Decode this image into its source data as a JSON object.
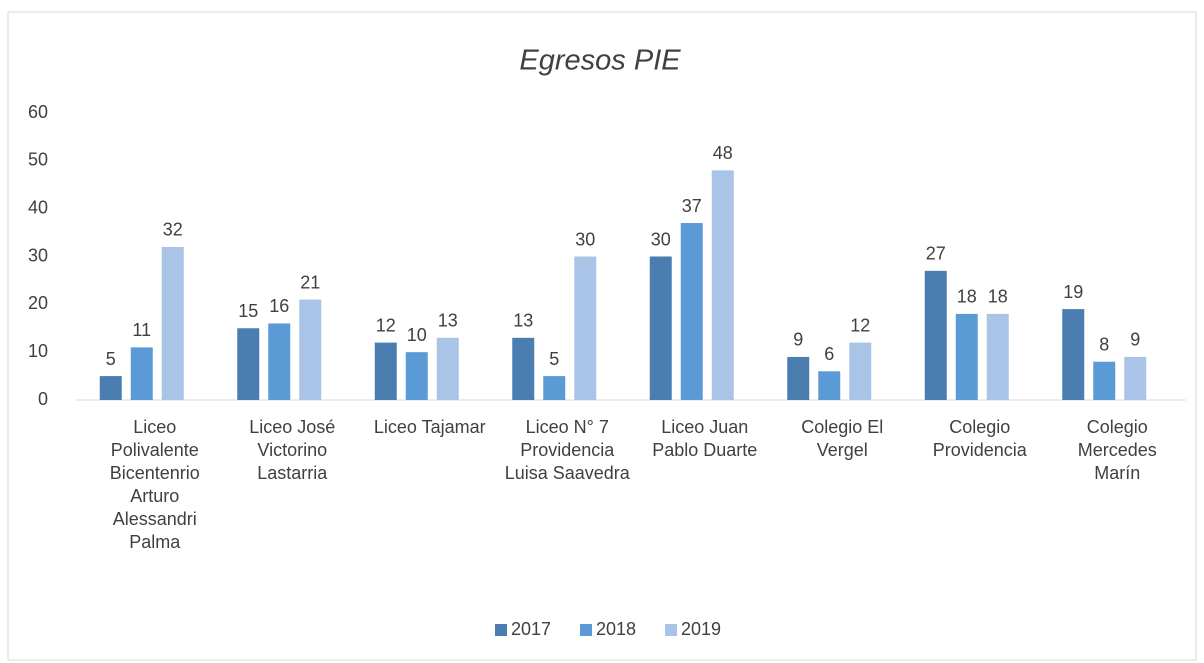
{
  "chart_data": {
    "type": "bar",
    "title": "Egresos PIE",
    "categories": [
      "Liceo Polivalente Bicentenrio Arturo Alessandri Palma",
      "Liceo José Victorino Lastarria",
      "Liceo Tajamar",
      "Liceo N° 7 Providencia Luisa Saavedra",
      "Liceo Juan Pablo Duarte",
      "Colegio El Vergel",
      "Colegio Providencia",
      "Colegio Mercedes Marín"
    ],
    "series": [
      {
        "name": "2017",
        "color": "#4a7eb0",
        "values": [
          5,
          15,
          12,
          13,
          30,
          9,
          27,
          19
        ]
      },
      {
        "name": "2018",
        "color": "#5b9bd5",
        "values": [
          11,
          16,
          10,
          5,
          37,
          6,
          18,
          8
        ]
      },
      {
        "name": "2019",
        "color": "#a9c4e6",
        "values": [
          32,
          21,
          13,
          30,
          48,
          12,
          18,
          9
        ]
      }
    ],
    "ylim": [
      0,
      60
    ],
    "yticks": [
      0,
      10,
      20,
      30,
      40,
      50,
      60
    ],
    "grid": false,
    "legend": "bottom"
  }
}
